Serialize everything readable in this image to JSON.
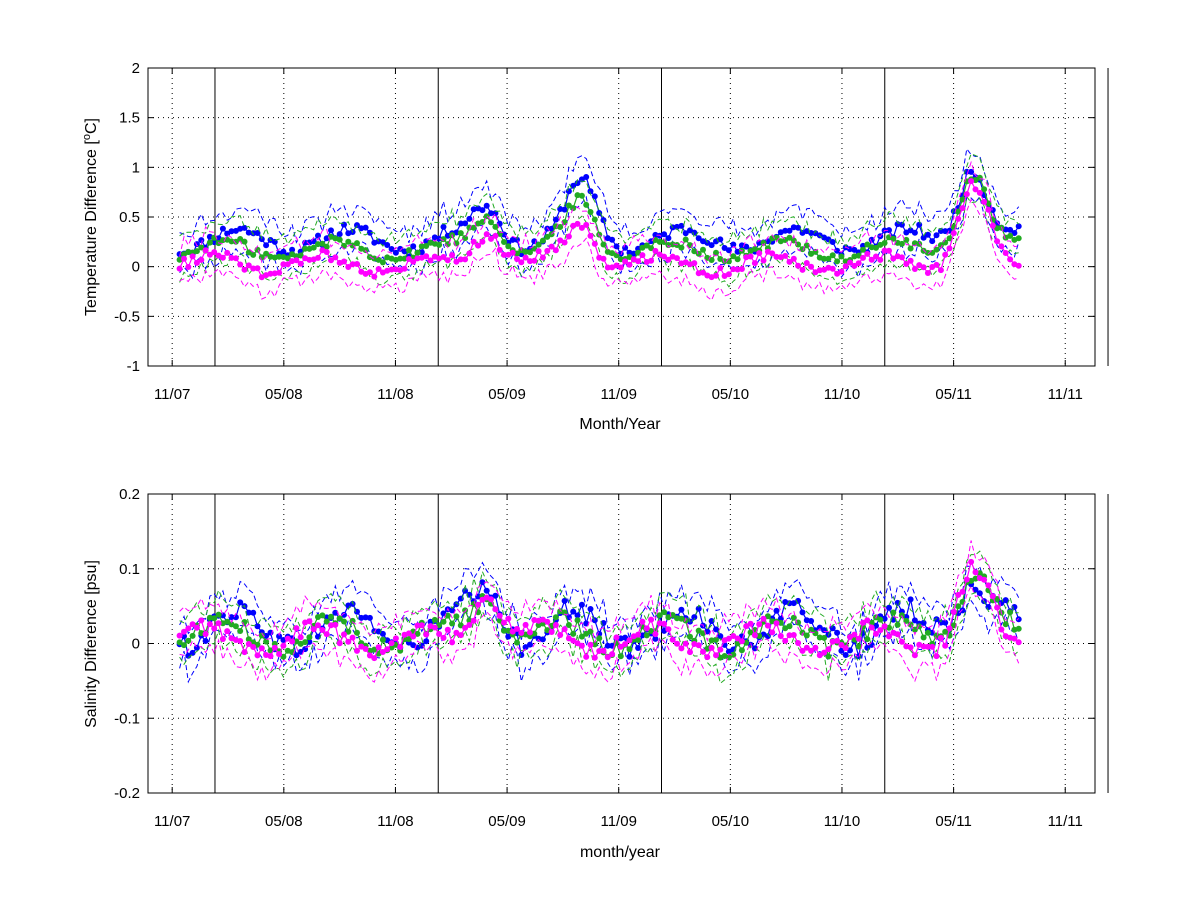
{
  "colors": {
    "blue": "#0000ff",
    "green": "#22aa22",
    "magenta": "#ff00ff",
    "frame": "#000000",
    "grid": "#000000"
  },
  "chart_data": [
    {
      "type": "line",
      "xlabel": "Month/Year",
      "ylabel_text": "Temperature Difference [",
      "ylabel_sup": "o",
      "ylabel_unit": "C]",
      "xlim": [
        "2007-10",
        "2011-12"
      ],
      "ylim": [
        -1,
        2
      ],
      "x_ticks": [
        "11/07",
        "05/08",
        "11/08",
        "05/09",
        "11/09",
        "05/10",
        "11/10",
        "05/11",
        "11/11"
      ],
      "y_ticks": [
        "2",
        "1.5",
        "1",
        "0.5",
        "0",
        "-0.5",
        "-1"
      ],
      "grid": true,
      "vertical_markers": [
        "2008-01",
        "2009-01",
        "2010-01",
        "2011-01",
        "2012-01"
      ],
      "series_style": "bold markers with thin dashed envelopes (blue, green, magenta)",
      "series": [
        {
          "color": "blue",
          "mean": 0.27,
          "amp": 0.11,
          "phase": 0.0,
          "envelope": 0.22
        },
        {
          "color": "green",
          "mean": 0.17,
          "amp": 0.09,
          "phase": 0.7,
          "envelope": 0.22
        },
        {
          "color": "magenta",
          "mean": 0.03,
          "amp": 0.09,
          "phase": 1.4,
          "envelope": 0.2
        }
      ],
      "peaks": [
        {
          "date": "2009-04",
          "blue": 0.6,
          "green": 0.55,
          "magenta": 0.4
        },
        {
          "date": "2009-09",
          "blue": 0.8,
          "green": 0.65,
          "magenta": 0.45
        },
        {
          "date": "2011-06",
          "blue": 1.05,
          "green": 0.95,
          "magenta": 0.8
        }
      ]
    },
    {
      "type": "line",
      "xlabel": "month/year",
      "ylabel_text": "Salinity Difference [psu]",
      "xlim": [
        "2007-10",
        "2011-12"
      ],
      "ylim": [
        -0.2,
        0.2
      ],
      "x_ticks": [
        "11/07",
        "05/08",
        "11/08",
        "05/09",
        "11/09",
        "05/10",
        "11/10",
        "05/11",
        "11/11"
      ],
      "y_ticks": [
        "0.2",
        "0.1",
        "0",
        "-0.1",
        "-0.2"
      ],
      "grid": true,
      "vertical_markers": [
        "2008-01",
        "2009-01",
        "2010-01",
        "2011-01",
        "2012-01"
      ],
      "series_style": "bold markers with thin dashed envelopes (blue, green, magenta)",
      "series": [
        {
          "color": "blue",
          "mean": 0.02,
          "amp": 0.025,
          "phase": 0.0,
          "envelope": 0.03
        },
        {
          "color": "green",
          "mean": 0.012,
          "amp": 0.02,
          "phase": 0.9,
          "envelope": 0.03
        },
        {
          "color": "magenta",
          "mean": 0.005,
          "amp": 0.018,
          "phase": 1.8,
          "envelope": 0.03
        }
      ],
      "peaks": [
        {
          "date": "2009-04",
          "blue": 0.065,
          "green": 0.07,
          "magenta": 0.075
        },
        {
          "date": "2011-06",
          "blue": 0.1,
          "green": 0.095,
          "magenta": 0.09
        }
      ]
    }
  ]
}
